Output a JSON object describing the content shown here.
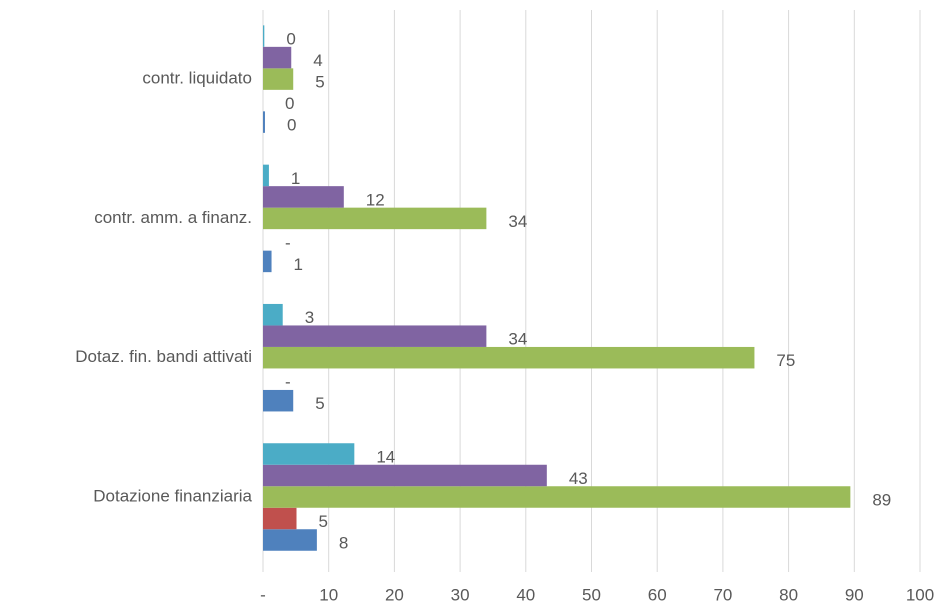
{
  "chart_data": {
    "type": "hbar",
    "categories": [
      "Dotazione finanziaria",
      "Dotaz. fin. bandi attivati",
      "contr. amm. a finanz.",
      "contr. liquidato"
    ],
    "series": [
      {
        "color": "#4f81bd",
        "values": [
          8.2,
          4.6,
          1.3,
          0.3
        ],
        "value_labels": [
          "8",
          "5",
          "1",
          "0"
        ]
      },
      {
        "color": "#c0504d",
        "values": [
          5.1,
          0,
          0,
          0
        ],
        "value_labels": [
          "5",
          "-",
          "-",
          "0"
        ]
      },
      {
        "color": "#9bbb59",
        "values": [
          89.4,
          74.8,
          34.0,
          4.6
        ],
        "value_labels": [
          "89",
          "75",
          "34",
          "5"
        ]
      },
      {
        "color": "#8064a2",
        "values": [
          43.2,
          34.0,
          12.3,
          4.3
        ],
        "value_labels": [
          "43",
          "34",
          "12",
          "4"
        ]
      },
      {
        "color": "#4bacc6",
        "values": [
          13.9,
          3.0,
          0.9,
          0.2
        ],
        "value_labels": [
          "14",
          "3",
          "1",
          "0"
        ]
      }
    ],
    "xlim": [
      0,
      100
    ],
    "xticks": [
      {
        "value": 0,
        "label": "-"
      },
      10,
      20,
      30,
      40,
      50,
      60,
      70,
      80,
      90,
      100
    ],
    "grid": true
  }
}
